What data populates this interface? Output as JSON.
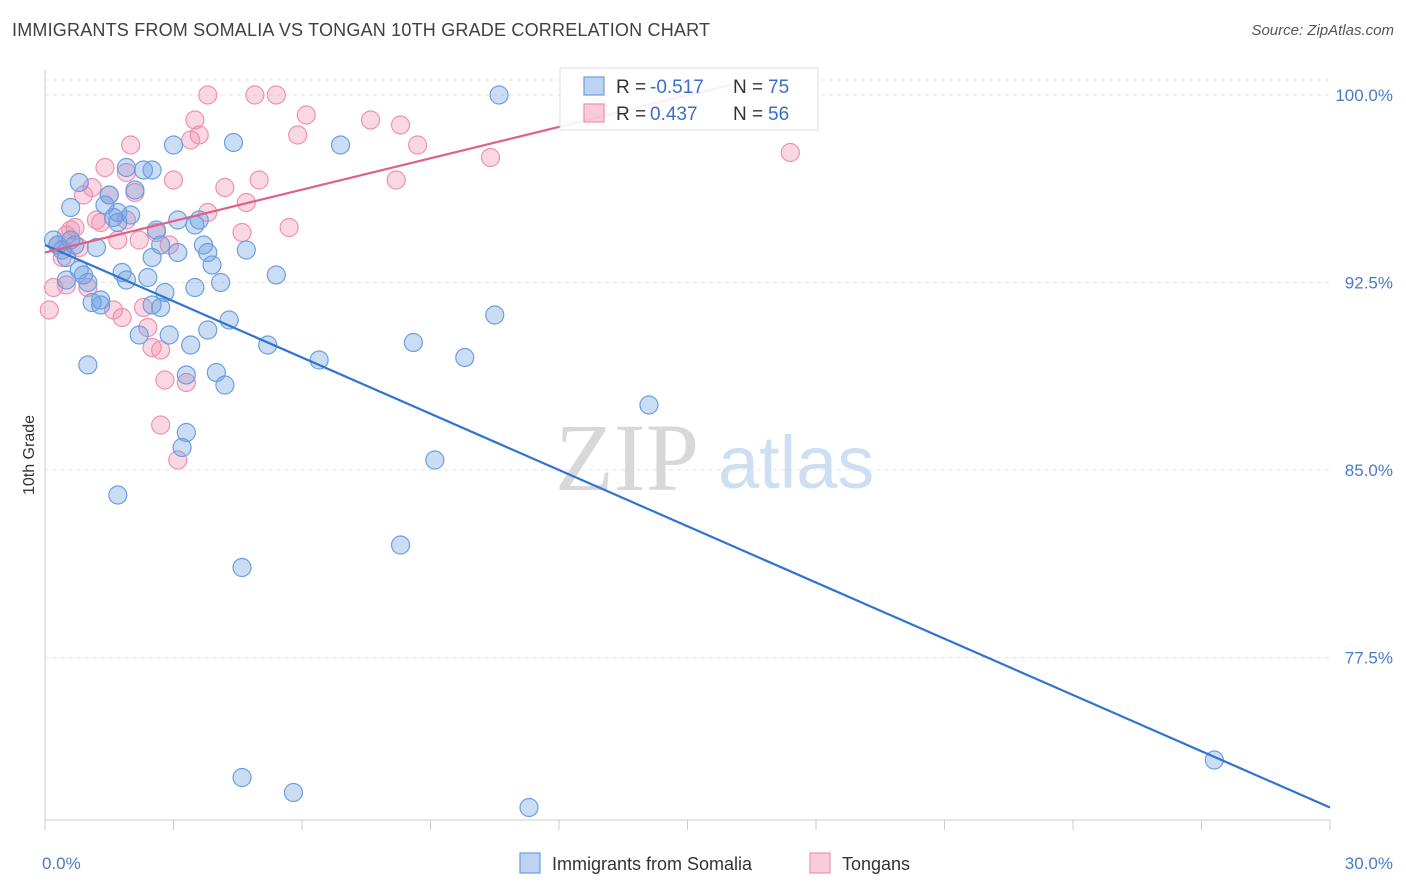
{
  "title": "IMMIGRANTS FROM SOMALIA VS TONGAN 10TH GRADE CORRELATION CHART",
  "source": "Source: ZipAtlas.com",
  "watermark": {
    "zip": "ZIP",
    "atlas": "atlas"
  },
  "chart_data": {
    "type": "scatter",
    "xlabel": "",
    "ylabel": "10th Grade",
    "xlim": [
      0,
      30
    ],
    "ylim": [
      71,
      101
    ],
    "x_tick_labels": [
      {
        "value": 0,
        "label": "0.0%"
      },
      {
        "value": 30,
        "label": "30.0%"
      }
    ],
    "y_tick_labels": [
      {
        "value": 100,
        "label": "100.0%"
      },
      {
        "value": 92.5,
        "label": "92.5%"
      },
      {
        "value": 85,
        "label": "85.0%"
      },
      {
        "value": 77.5,
        "label": "77.5%"
      }
    ],
    "grid": true,
    "legend": {
      "placement": "top-center",
      "entries": [
        {
          "r_label": "R =",
          "r_value": "-0.517",
          "n_label": "N =",
          "n_value": "75"
        },
        {
          "r_label": "R =",
          "r_value": "0.437",
          "n_label": "N =",
          "n_value": "56"
        }
      ]
    },
    "colors": {
      "somalia": "#6a9ee0",
      "tongans": "#f08fb0",
      "somalia_line": "#2e74d0",
      "tongans_line": "#e0608c"
    },
    "series": [
      {
        "name": "Immigrants from Somalia",
        "trend": {
          "x": [
            0,
            30
          ],
          "y": [
            94.0,
            71.5
          ]
        },
        "points": [
          [
            0.2,
            94.2
          ],
          [
            0.3,
            94.0
          ],
          [
            0.4,
            93.8
          ],
          [
            0.5,
            92.6
          ],
          [
            0.6,
            95.5
          ],
          [
            0.7,
            94.0
          ],
          [
            0.8,
            93.0
          ],
          [
            0.9,
            92.8
          ],
          [
            0.8,
            96.5
          ],
          [
            1.0,
            92.5
          ],
          [
            1.1,
            91.7
          ],
          [
            1.2,
            93.9
          ],
          [
            1.3,
            91.8
          ],
          [
            1.4,
            95.6
          ],
          [
            1.5,
            96.0
          ],
          [
            1.6,
            95.1
          ],
          [
            1.7,
            94.9
          ],
          [
            1.8,
            92.9
          ],
          [
            1.9,
            97.1
          ],
          [
            1.9,
            92.6
          ],
          [
            2.0,
            95.2
          ],
          [
            2.1,
            96.2
          ],
          [
            2.2,
            90.4
          ],
          [
            2.3,
            97.0
          ],
          [
            2.4,
            92.7
          ],
          [
            2.5,
            93.5
          ],
          [
            2.6,
            94.6
          ],
          [
            2.7,
            94.0
          ],
          [
            2.5,
            91.6
          ],
          [
            2.7,
            91.5
          ],
          [
            2.8,
            92.1
          ],
          [
            2.9,
            90.4
          ],
          [
            3.0,
            98.0
          ],
          [
            3.1,
            95.0
          ],
          [
            3.1,
            93.7
          ],
          [
            3.2,
            85.9
          ],
          [
            3.3,
            86.5
          ],
          [
            3.3,
            88.8
          ],
          [
            3.4,
            90.0
          ],
          [
            3.5,
            92.3
          ],
          [
            3.6,
            95.0
          ],
          [
            3.7,
            94.0
          ],
          [
            3.8,
            90.6
          ],
          [
            3.8,
            93.7
          ],
          [
            3.9,
            93.2
          ],
          [
            4.0,
            88.9
          ],
          [
            4.1,
            92.5
          ],
          [
            4.2,
            88.4
          ],
          [
            4.3,
            91.0
          ],
          [
            4.4,
            98.1
          ],
          [
            4.6,
            81.1
          ],
          [
            4.6,
            72.7
          ],
          [
            4.7,
            93.8
          ],
          [
            5.2,
            90.0
          ],
          [
            5.4,
            92.8
          ],
          [
            5.8,
            72.1
          ],
          [
            6.4,
            89.4
          ],
          [
            6.9,
            98.0
          ],
          [
            8.3,
            82.0
          ],
          [
            8.6,
            90.1
          ],
          [
            9.1,
            85.4
          ],
          [
            9.8,
            89.5
          ],
          [
            10.5,
            91.2
          ],
          [
            10.6,
            100.0
          ],
          [
            11.3,
            71.5
          ],
          [
            14.1,
            87.6
          ],
          [
            27.3,
            73.4
          ],
          [
            2.5,
            97.0
          ],
          [
            1.7,
            95.3
          ],
          [
            0.5,
            93.5
          ],
          [
            1.0,
            89.2
          ],
          [
            1.7,
            84.0
          ],
          [
            0.6,
            94.2
          ],
          [
            3.5,
            94.8
          ],
          [
            1.3,
            91.6
          ]
        ]
      },
      {
        "name": "Tongans",
        "trend": {
          "x": [
            0,
            16
          ],
          "y": [
            93.7,
            100.4
          ]
        },
        "points": [
          [
            0.1,
            91.4
          ],
          [
            0.2,
            92.3
          ],
          [
            0.3,
            94.0
          ],
          [
            0.4,
            93.5
          ],
          [
            0.5,
            92.4
          ],
          [
            0.5,
            94.4
          ],
          [
            0.6,
            94.6
          ],
          [
            0.7,
            94.7
          ],
          [
            0.8,
            93.9
          ],
          [
            0.9,
            96.0
          ],
          [
            1.0,
            92.3
          ],
          [
            1.1,
            96.3
          ],
          [
            1.2,
            95.0
          ],
          [
            1.3,
            94.9
          ],
          [
            1.4,
            97.1
          ],
          [
            1.5,
            96.0
          ],
          [
            1.6,
            91.4
          ],
          [
            1.7,
            94.2
          ],
          [
            1.8,
            91.1
          ],
          [
            1.9,
            95.0
          ],
          [
            1.9,
            96.9
          ],
          [
            2.0,
            98.0
          ],
          [
            2.1,
            96.1
          ],
          [
            2.2,
            94.2
          ],
          [
            2.3,
            91.5
          ],
          [
            2.4,
            90.7
          ],
          [
            2.5,
            89.9
          ],
          [
            2.6,
            94.5
          ],
          [
            2.7,
            89.8
          ],
          [
            2.7,
            86.8
          ],
          [
            2.8,
            88.6
          ],
          [
            2.9,
            94.0
          ],
          [
            3.0,
            96.6
          ],
          [
            3.1,
            85.4
          ],
          [
            3.3,
            88.5
          ],
          [
            3.4,
            98.2
          ],
          [
            3.5,
            99.0
          ],
          [
            3.6,
            98.4
          ],
          [
            3.8,
            95.3
          ],
          [
            3.8,
            100.0
          ],
          [
            4.2,
            96.3
          ],
          [
            4.6,
            94.5
          ],
          [
            4.7,
            95.7
          ],
          [
            4.9,
            100.0
          ],
          [
            5.0,
            96.6
          ],
          [
            5.4,
            100.0
          ],
          [
            5.7,
            94.7
          ],
          [
            5.9,
            98.4
          ],
          [
            6.1,
            99.2
          ],
          [
            7.6,
            99.0
          ],
          [
            8.2,
            96.6
          ],
          [
            8.3,
            98.8
          ],
          [
            8.7,
            98.0
          ],
          [
            10.4,
            97.5
          ],
          [
            12.9,
            99.5
          ],
          [
            17.4,
            97.7
          ]
        ]
      }
    ]
  }
}
